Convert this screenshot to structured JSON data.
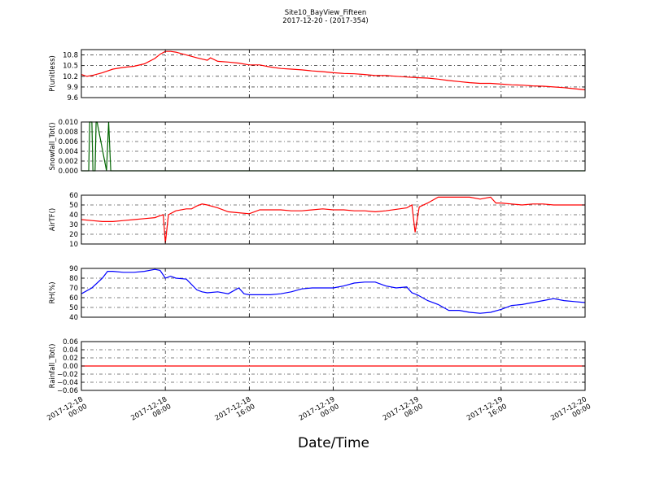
{
  "figure": {
    "title": "Site10_BayView_Fifteen",
    "subtitle": "2017-12-20 - (2017-354)",
    "xlabel": "Date/Time"
  },
  "colors": {
    "red": "#ff0000",
    "green": "#006400",
    "blue": "#0000ff",
    "grid": "#000000"
  },
  "chart_data": [
    {
      "type": "line",
      "ylabel": "P(unitless)",
      "ylim": [
        9.6,
        10.95
      ],
      "yticks": [
        "9.6",
        "9.9",
        "10.2",
        "10.5",
        "10.8"
      ],
      "ytick_values": [
        9.6,
        9.9,
        10.2,
        10.5,
        10.8
      ],
      "xlim": [
        0,
        48
      ],
      "grid": true,
      "series": [
        {
          "color": "#ff0000",
          "x": [
            0,
            0.5,
            1,
            2,
            3,
            4,
            5,
            6,
            7,
            7.5,
            8,
            8.5,
            9,
            10,
            11,
            12,
            12.3,
            13,
            14,
            15,
            16,
            17,
            18,
            19,
            20,
            21,
            22,
            23,
            24,
            25,
            26,
            27,
            28,
            29,
            30,
            31,
            32,
            33,
            34,
            35,
            36,
            37,
            38,
            39,
            40,
            41,
            42,
            43,
            44,
            45,
            46,
            47,
            48
          ],
          "y": [
            10.25,
            10.2,
            10.22,
            10.3,
            10.4,
            10.45,
            10.48,
            10.55,
            10.7,
            10.82,
            10.9,
            10.9,
            10.88,
            10.8,
            10.72,
            10.65,
            10.72,
            10.62,
            10.6,
            10.57,
            10.52,
            10.52,
            10.46,
            10.42,
            10.4,
            10.38,
            10.35,
            10.33,
            10.3,
            10.28,
            10.27,
            10.25,
            10.22,
            10.22,
            10.2,
            10.18,
            10.16,
            10.15,
            10.12,
            10.08,
            10.05,
            10.02,
            10.0,
            10.0,
            9.98,
            9.96,
            9.95,
            9.93,
            9.92,
            9.9,
            9.88,
            9.85,
            9.82
          ]
        }
      ]
    },
    {
      "type": "line",
      "ylabel": "Snowfall_Tot()",
      "ylim": [
        0.0,
        0.01
      ],
      "yticks": [
        "0.000",
        "0.002",
        "0.004",
        "0.006",
        "0.008",
        "0.010"
      ],
      "ytick_values": [
        0.0,
        0.002,
        0.004,
        0.006,
        0.008,
        0.01
      ],
      "xlim": [
        0,
        48
      ],
      "grid": true,
      "series": [
        {
          "color": "#006400",
          "x": [
            0,
            0.7,
            0.8,
            1.0,
            1.1,
            1.3,
            1.4,
            1.5,
            2.4,
            2.6,
            2.8,
            48
          ],
          "y": [
            0,
            0,
            0.01,
            0.01,
            0.0,
            0.0,
            0.01,
            0.01,
            0.0,
            0.01,
            0.0,
            0.0
          ]
        }
      ]
    },
    {
      "type": "line",
      "ylabel": "AirTF()",
      "ylim": [
        10,
        60
      ],
      "yticks": [
        "10",
        "20",
        "30",
        "40",
        "50",
        "60"
      ],
      "ytick_values": [
        10,
        20,
        30,
        40,
        50,
        60
      ],
      "xlim": [
        0,
        48
      ],
      "grid": true,
      "series": [
        {
          "color": "#ff0000",
          "x": [
            0,
            1,
            2,
            3,
            4,
            5,
            6,
            7,
            7.5,
            7.8,
            8.0,
            8.3,
            9,
            10,
            10.5,
            11,
            11.5,
            12,
            13,
            14,
            15,
            16,
            17,
            18,
            19,
            20,
            21,
            22,
            23,
            24,
            25,
            26,
            27,
            28,
            29,
            31,
            31.5,
            31.8,
            32.2,
            33,
            34,
            35,
            36,
            37,
            38,
            39,
            39.5,
            40,
            41,
            42,
            43,
            44,
            45,
            46,
            47,
            48
          ],
          "y": [
            35,
            34,
            33,
            33,
            34,
            35,
            36,
            37,
            39,
            40,
            11,
            40,
            44,
            46,
            46,
            49,
            51,
            50,
            47,
            43,
            42,
            41,
            45,
            45,
            45,
            44,
            44,
            45,
            46,
            45,
            45,
            44,
            44,
            43,
            44,
            47,
            50,
            22,
            48,
            52,
            58,
            58,
            58,
            58,
            56,
            58,
            52,
            52,
            51,
            50,
            51,
            51,
            50,
            50,
            50,
            50
          ]
        }
      ]
    },
    {
      "type": "line",
      "ylabel": "RH(%)",
      "ylim": [
        40,
        90
      ],
      "yticks": [
        "40",
        "50",
        "60",
        "70",
        "80",
        "90"
      ],
      "ytick_values": [
        40,
        50,
        60,
        70,
        80,
        90
      ],
      "xlim": [
        0,
        48
      ],
      "grid": true,
      "series": [
        {
          "color": "#0000ff",
          "x": [
            0,
            1,
            2,
            2.5,
            3,
            4,
            5,
            6,
            7,
            7.5,
            8,
            8.5,
            9,
            10,
            11,
            11.5,
            12,
            13,
            14,
            15,
            15.5,
            16,
            17,
            18,
            19,
            20,
            21,
            22,
            23,
            24,
            25,
            26,
            27,
            28,
            29,
            30,
            31,
            31.5,
            32,
            33,
            34,
            35,
            36,
            37,
            38,
            39,
            40,
            41,
            42,
            43,
            44,
            45,
            46,
            47,
            48
          ],
          "y": [
            64,
            70,
            80,
            87,
            87,
            86,
            86,
            87,
            89,
            88,
            80,
            82,
            80,
            79,
            68,
            66,
            65,
            66,
            64,
            70,
            64,
            63,
            63,
            63,
            64,
            66,
            69,
            70,
            70,
            70,
            72,
            75,
            76,
            76,
            72,
            70,
            71,
            65,
            63,
            57,
            53,
            47,
            47,
            45,
            44,
            45,
            48,
            52,
            53,
            55,
            57,
            59,
            57,
            56,
            55
          ]
        }
      ]
    },
    {
      "type": "line",
      "ylabel": "Rainfall_Tot()",
      "ylim": [
        -0.06,
        0.06
      ],
      "yticks": [
        "−0.06",
        "−0.04",
        "−0.02",
        "0.00",
        "0.02",
        "0.04",
        "0.06"
      ],
      "ytick_values": [
        -0.06,
        -0.04,
        -0.02,
        0.0,
        0.02,
        0.04,
        0.06
      ],
      "xlim": [
        0,
        48
      ],
      "grid": true,
      "series": [
        {
          "color": "#ff0000",
          "x": [
            0,
            48
          ],
          "y": [
            0,
            0
          ]
        }
      ]
    }
  ],
  "xticks": [
    {
      "line1": "2017-12-18",
      "line2": "00:00"
    },
    {
      "line1": "2017-12-18",
      "line2": "08:00"
    },
    {
      "line1": "2017-12-18",
      "line2": "16:00"
    },
    {
      "line1": "2017-12-19",
      "line2": "00:00"
    },
    {
      "line1": "2017-12-19",
      "line2": "08:00"
    },
    {
      "line1": "2017-12-19",
      "line2": "16:00"
    },
    {
      "line1": "2017-12-20",
      "line2": "00:00"
    }
  ],
  "xtick_hours": [
    0,
    8,
    16,
    24,
    32,
    40,
    48
  ]
}
